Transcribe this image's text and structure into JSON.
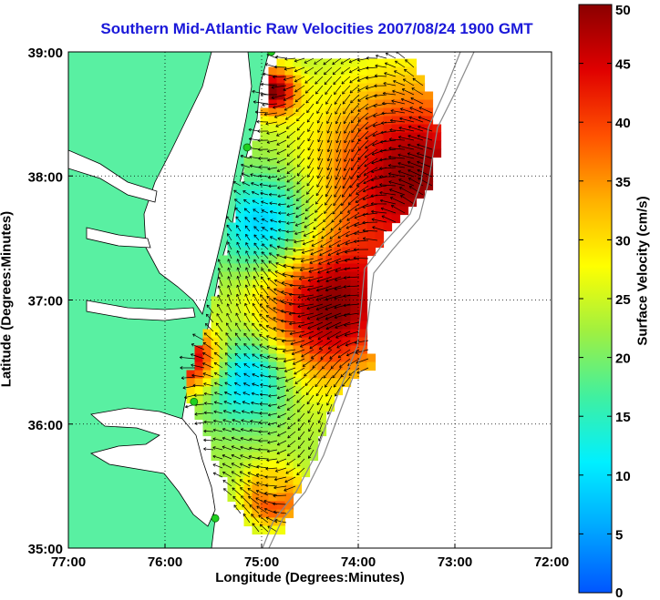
{
  "title": "Southern Mid-Atlantic Raw Velocities 2007/08/24 1900 GMT",
  "xlabel": "Longitude (Degrees:Minutes)",
  "ylabel": "Latitude (Degrees:Minutes)",
  "colorbar_label": "Surface Velocity (cm/s)",
  "x_ticks": [
    "77:00",
    "76:00",
    "75:00",
    "74:00",
    "73:00",
    "72:00"
  ],
  "y_ticks": [
    "39:00",
    "38:00",
    "37:00",
    "36:00",
    "35:00"
  ],
  "colorbar_ticks": [
    "50",
    "45",
    "40",
    "35",
    "30",
    "25",
    "20",
    "15",
    "10",
    "5",
    "0"
  ],
  "map": {
    "lon_range": [
      -77.0,
      -72.0
    ],
    "lat_range": [
      35.0,
      39.0
    ],
    "grid": "dotted",
    "land_color": "#59f0a2",
    "water_color": "#ffffff",
    "coastline_color": "#000000",
    "bathymetry_color": "#8a8a8a",
    "station_color": "#20d020",
    "colorbar_range": [
      0,
      50
    ],
    "colormap": [
      "#0055ff",
      "#00a8ff",
      "#00f0ff",
      "#40f0a0",
      "#a0f040",
      "#ffff00",
      "#ffb000",
      "#ff5000",
      "#e00000",
      "#8b0000"
    ],
    "stations": [
      {
        "lon": -74.9,
        "lat": 39.0
      },
      {
        "lon": -75.15,
        "lat": 38.23
      },
      {
        "lon": -75.7,
        "lat": 36.18
      },
      {
        "lon": -75.48,
        "lat": 35.24
      }
    ]
  }
}
